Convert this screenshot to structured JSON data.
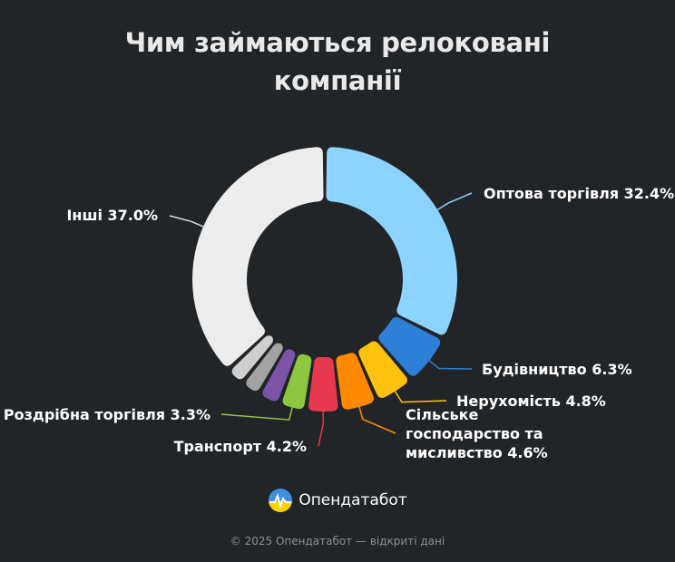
{
  "chart_data": {
    "type": "pie",
    "title_lines": [
      "Чим займаються релоковані",
      "компанії"
    ],
    "slices": [
      {
        "label": "Оптова торгівля",
        "value": 32.4,
        "color": "#8dd3ff",
        "label_text": "Оптова торгівля 32.4%"
      },
      {
        "label": "Будівництво",
        "value": 6.3,
        "color": "#2e7fd6",
        "label_text": "Будівництво 6.3%"
      },
      {
        "label": "Нерухомість",
        "value": 4.8,
        "color": "#ffc20e",
        "label_text": "Нерухомість 4.8%"
      },
      {
        "label": "Сільське господарство та мисливство",
        "value": 4.6,
        "color": "#ff8a00",
        "label_lines": [
          "Сільське",
          "господарство та",
          "мисливство 4.6%"
        ]
      },
      {
        "label": "Транспорт",
        "value": 4.2,
        "color": "#e8384f",
        "label_text": "Транспорт 4.2%"
      },
      {
        "label": "Роздрібна торгівля",
        "value": 3.3,
        "color": "#8dc63f",
        "label_text": "Роздрібна торгівля 3.3%"
      },
      {
        "label": "",
        "value": 2.7,
        "color": "#7b54a8"
      },
      {
        "label": "",
        "value": 2.4,
        "color": "#a3a3a3"
      },
      {
        "label": "",
        "value": 2.3,
        "color": "#cfcfcf"
      },
      {
        "label": "Інші",
        "value": 37.0,
        "color": "#ededed",
        "label_text": "Інші 37.0%"
      }
    ]
  },
  "brand": {
    "name": "Опендатабот",
    "logo_icon": "opendatabot-logo-icon",
    "colors": {
      "blue": "#3f8fe0",
      "yellow": "#ffd400"
    }
  },
  "footer": {
    "text": "© 2025 Опендатабот — відкриті дані"
  }
}
